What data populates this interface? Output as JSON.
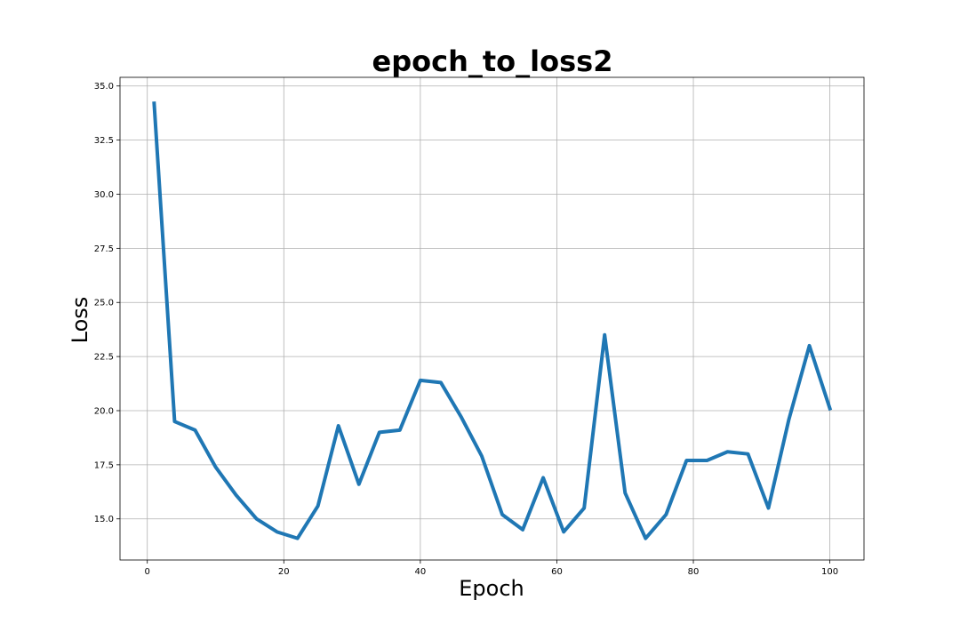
{
  "chart_data": {
    "type": "line",
    "title": "epoch_to_loss2",
    "xlabel": "Epoch",
    "ylabel": "Loss",
    "xlim": [
      -4,
      105
    ],
    "ylim": [
      13.1,
      35.4
    ],
    "xticks": [
      0,
      20,
      40,
      60,
      80,
      100
    ],
    "xtick_labels": [
      "0",
      "20",
      "40",
      "60",
      "80",
      "100"
    ],
    "yticks": [
      15.0,
      17.5,
      20.0,
      22.5,
      25.0,
      27.5,
      30.0,
      32.5,
      35.0
    ],
    "ytick_labels": [
      "15.0",
      "17.5",
      "20.0",
      "22.5",
      "25.0",
      "27.5",
      "30.0",
      "32.5",
      "35.0"
    ],
    "grid": true,
    "series": [
      {
        "color": "#1f77b4",
        "x": [
          1,
          4,
          7,
          10,
          13,
          16,
          19,
          22,
          25,
          28,
          31,
          34,
          37,
          40,
          43,
          46,
          49,
          52,
          55,
          58,
          61,
          64,
          67,
          70,
          73,
          76,
          79,
          82,
          85,
          88,
          91,
          94,
          97,
          100
        ],
        "y": [
          34.2,
          19.5,
          19.1,
          17.4,
          16.1,
          15.0,
          14.4,
          14.1,
          15.6,
          19.3,
          16.6,
          19.0,
          19.1,
          21.4,
          21.3,
          19.7,
          17.9,
          15.2,
          14.5,
          16.9,
          14.4,
          15.5,
          23.5,
          16.2,
          14.1,
          15.2,
          17.7,
          17.7,
          18.1,
          18.0,
          15.5,
          19.6,
          23.0,
          20.1
        ]
      }
    ]
  }
}
